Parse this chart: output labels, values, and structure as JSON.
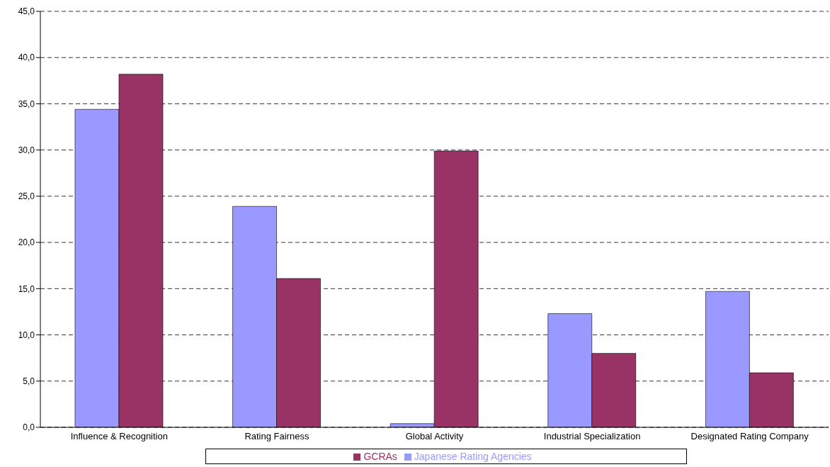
{
  "chart_data": {
    "type": "bar",
    "categories": [
      "Influence & Recognition",
      "Rating Fairness",
      "Global Activity",
      "Industrial Specialization",
      "Designated Rating Company"
    ],
    "series": [
      {
        "name": "Japanese Rating Agencies",
        "color": "#9999ff",
        "values": [
          34.4,
          23.9,
          0.4,
          12.3,
          14.7
        ]
      },
      {
        "name": "GCRAs",
        "color": "#993366",
        "values": [
          38.2,
          16.1,
          29.9,
          8.0,
          5.9
        ]
      }
    ],
    "ylim": [
      0,
      45
    ],
    "yticks": [
      {
        "value": 0,
        "label": "0,0"
      },
      {
        "value": 5,
        "label": "5,0"
      },
      {
        "value": 10,
        "label": "10,0"
      },
      {
        "value": 15,
        "label": "15,0"
      },
      {
        "value": 20,
        "label": "20,0"
      },
      {
        "value": 25,
        "label": "25,0"
      },
      {
        "value": 30,
        "label": "30,0"
      },
      {
        "value": 35,
        "label": "35,0"
      },
      {
        "value": 40,
        "label": "40,0"
      },
      {
        "value": 45,
        "label": "45,0"
      }
    ],
    "grid": "y",
    "legend": "bottom"
  }
}
